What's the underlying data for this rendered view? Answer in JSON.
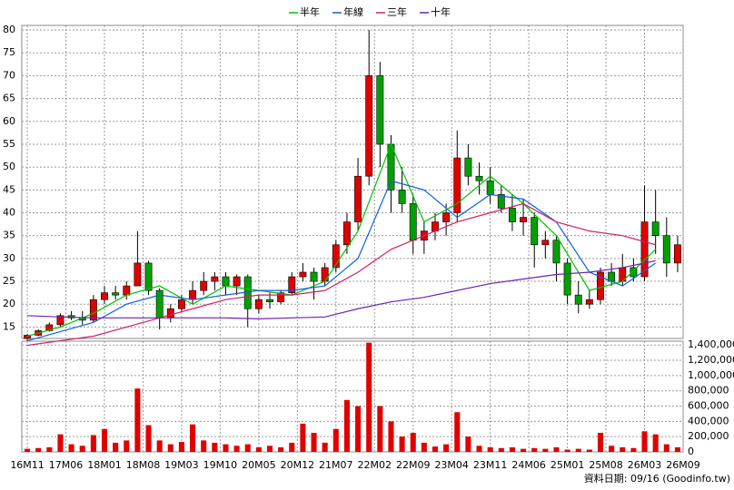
{
  "chart_data": [
    {
      "type": "candlestick",
      "source": "資料日期: 09/16  (Goodinfo.tw)",
      "legend_position": "top",
      "grid": true,
      "up_color": "#e00000",
      "down_color": "#00a000",
      "xlim": [
        -0.5,
        59.5
      ],
      "xticks": [
        {
          "value": 0,
          "label": "16M11"
        },
        {
          "value": 3.5,
          "label": "17M06"
        },
        {
          "value": 7,
          "label": "18M01"
        },
        {
          "value": 10.5,
          "label": "18M08"
        },
        {
          "value": 14,
          "label": "19M03"
        },
        {
          "value": 17.5,
          "label": "19M10"
        },
        {
          "value": 21,
          "label": "20M05"
        },
        {
          "value": 24.5,
          "label": "20M12"
        },
        {
          "value": 28,
          "label": "21M07"
        },
        {
          "value": 31.5,
          "label": "22M02"
        },
        {
          "value": 35,
          "label": "22M09"
        },
        {
          "value": 38.5,
          "label": "23M04"
        },
        {
          "value": 42,
          "label": "23M11"
        },
        {
          "value": 45.5,
          "label": "24M06"
        },
        {
          "value": 49,
          "label": "25M01"
        },
        {
          "value": 52.5,
          "label": "25M08"
        },
        {
          "value": 56,
          "label": "26M03"
        },
        {
          "value": 59.5,
          "label": "26M09"
        }
      ],
      "ylim": [
        12.5,
        81
      ],
      "yticks": [
        15,
        20,
        25,
        30,
        35,
        40,
        45,
        50,
        55,
        60,
        65,
        70,
        75,
        80
      ],
      "open": [
        12.5,
        13.2,
        14.2,
        15.5,
        17.5,
        17,
        16.5,
        21,
        22.5,
        22,
        24,
        29,
        23,
        17,
        19,
        21,
        23,
        25,
        26,
        24,
        26,
        19,
        21,
        20.5,
        22.5,
        26,
        27,
        25,
        28,
        33,
        38,
        48,
        70,
        55,
        45,
        42,
        34,
        36,
        38,
        40,
        52,
        48,
        47,
        44,
        41,
        38,
        39,
        33,
        34,
        29,
        22,
        20,
        21,
        27,
        25,
        28,
        26,
        38,
        35,
        29
      ],
      "high": [
        13.5,
        14.5,
        16,
        18,
        18.5,
        18.5,
        22,
        24,
        24,
        25,
        36,
        29.5,
        23.5,
        20,
        22,
        25,
        27,
        27,
        27,
        26.5,
        26.5,
        22,
        22.5,
        23,
        27,
        29,
        28,
        29,
        34,
        40,
        52,
        80,
        73,
        57,
        50,
        44,
        38,
        40,
        42,
        58,
        55,
        51,
        50,
        46,
        44,
        43,
        40,
        36,
        35,
        30,
        25,
        23,
        28,
        29,
        31,
        30,
        46,
        45,
        39,
        35
      ],
      "low": [
        12,
        13,
        14,
        15,
        16.5,
        15.5,
        16,
        20,
        21,
        21,
        24,
        22,
        14.5,
        16,
        18.5,
        20,
        22,
        23,
        22,
        22,
        15,
        18,
        19,
        20,
        22,
        25,
        21,
        24,
        27,
        31,
        36,
        46,
        50,
        40,
        40,
        31,
        31,
        34,
        35,
        38,
        46,
        44,
        42,
        40,
        36,
        35,
        28,
        30,
        25,
        20,
        18,
        19,
        20,
        24,
        24,
        25,
        25,
        31,
        26,
        27
      ],
      "close": [
        13.2,
        14.2,
        15.5,
        17.5,
        17,
        16.5,
        21,
        22.5,
        22,
        24,
        29,
        23,
        17,
        19,
        21,
        23,
        25,
        26,
        24,
        26,
        19,
        21,
        20.5,
        22.5,
        26,
        27,
        25,
        28,
        33,
        38,
        48,
        70,
        55,
        45,
        42,
        34,
        36,
        38,
        40,
        52,
        48,
        47,
        44,
        41,
        38,
        39,
        33,
        34,
        29,
        22,
        20,
        21,
        27,
        25,
        28,
        26,
        38,
        35,
        29,
        33
      ],
      "series": [
        {
          "name": "半年",
          "color": "#00c000",
          "x": [
            0,
            3,
            6,
            9,
            12,
            15,
            18,
            21,
            24,
            27,
            30,
            33,
            36,
            39,
            42,
            45,
            48,
            51,
            54,
            57
          ],
          "values": [
            13,
            15,
            18,
            22,
            24,
            20,
            24,
            23,
            22,
            25,
            36,
            55,
            38,
            42,
            48,
            42,
            35,
            23,
            25,
            32
          ]
        },
        {
          "name": "年線",
          "color": "#1060e0",
          "x": [
            0,
            3,
            6,
            9,
            12,
            15,
            18,
            21,
            24,
            27,
            30,
            33,
            36,
            39,
            42,
            45,
            48,
            51,
            54,
            57
          ],
          "values": [
            12,
            14,
            16,
            20,
            22,
            21,
            22,
            23,
            23,
            24,
            30,
            47,
            45,
            39,
            44,
            43,
            38,
            27,
            24,
            29
          ]
        },
        {
          "name": "三年",
          "color": "#d0206a",
          "x": [
            0,
            3,
            6,
            9,
            12,
            15,
            18,
            21,
            24,
            27,
            30,
            33,
            36,
            39,
            42,
            45,
            48,
            51,
            54,
            57
          ],
          "values": [
            11,
            12,
            13,
            15,
            17,
            19,
            21,
            22,
            22,
            23,
            27,
            32,
            35,
            38,
            40,
            42,
            38,
            36,
            35,
            33
          ]
        },
        {
          "name": "十年",
          "color": "#7020b0",
          "x": [
            0,
            3,
            6,
            9,
            12,
            15,
            18,
            21,
            24,
            27,
            30,
            33,
            36,
            39,
            42,
            45,
            48,
            51,
            54,
            57
          ],
          "values": [
            17.5,
            17.2,
            17,
            17,
            17,
            17,
            17,
            16.8,
            17,
            17.2,
            19,
            20.5,
            21.5,
            23,
            24.5,
            25.5,
            26.5,
            27,
            28,
            29.5
          ]
        }
      ]
    },
    {
      "type": "bar",
      "grid": true,
      "color": "#e00000",
      "ylim": [
        0,
        1450000
      ],
      "yticks": [
        0,
        {
          "value": 200000,
          "label": "200,000"
        },
        {
          "value": 400000,
          "label": "400,000"
        },
        {
          "value": 600000,
          "label": "600,000"
        },
        {
          "value": 800000,
          "label": "800,000"
        },
        {
          "value": 1000000,
          "label": "1,000,000"
        },
        {
          "value": 1200000,
          "label": "1,200,000"
        },
        {
          "value": 1400000,
          "label": "1,400,000"
        }
      ],
      "values": [
        40000,
        50000,
        60000,
        230000,
        100000,
        80000,
        220000,
        300000,
        120000,
        150000,
        830000,
        350000,
        150000,
        100000,
        130000,
        360000,
        150000,
        120000,
        100000,
        80000,
        100000,
        60000,
        80000,
        60000,
        120000,
        370000,
        250000,
        120000,
        300000,
        680000,
        600000,
        1430000,
        600000,
        400000,
        200000,
        250000,
        120000,
        70000,
        100000,
        520000,
        200000,
        80000,
        60000,
        50000,
        60000,
        40000,
        50000,
        40000,
        60000,
        30000,
        40000,
        30000,
        250000,
        80000,
        60000,
        50000,
        270000,
        230000,
        100000,
        60000
      ]
    }
  ]
}
